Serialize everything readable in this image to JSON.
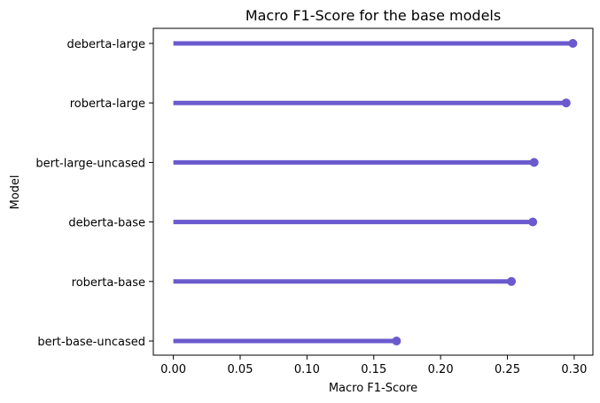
{
  "chart_data": {
    "type": "bar",
    "style": "lollipop",
    "orientation": "horizontal",
    "title": "Macro F1-Score for the base models",
    "xlabel": "Macro F1-Score",
    "ylabel": "Model",
    "categories": [
      "deberta-large",
      "roberta-large",
      "bert-large-uncased",
      "deberta-base",
      "roberta-base",
      "bert-base-uncased"
    ],
    "values": [
      0.299,
      0.294,
      0.27,
      0.269,
      0.253,
      0.167
    ],
    "xlim": [
      -0.015,
      0.314
    ],
    "xticks": [
      0.0,
      0.05,
      0.1,
      0.15,
      0.2,
      0.25,
      0.3
    ],
    "xtick_labels": [
      "0.00",
      "0.05",
      "0.10",
      "0.15",
      "0.20",
      "0.25",
      "0.30"
    ],
    "grid": false,
    "color": "#6a5acd"
  }
}
